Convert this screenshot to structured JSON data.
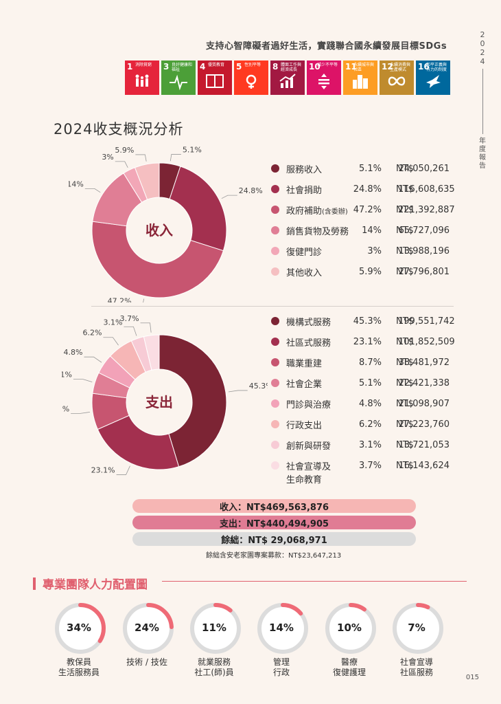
{
  "header": {
    "title": "支持心智障礙者過好生活，實踐聯合國永續發展目標SDGs"
  },
  "side": {
    "year": "2024",
    "label": "年度報告"
  },
  "sdgs": [
    {
      "num": "1",
      "label": "消除貧窮",
      "color": "#e5243b",
      "icon": "people-icon"
    },
    {
      "num": "3",
      "label": "良好健康和福祉",
      "color": "#4c9f38",
      "icon": "heartbeat-icon"
    },
    {
      "num": "4",
      "label": "優質教育",
      "color": "#c5192d",
      "icon": "book-icon"
    },
    {
      "num": "5",
      "label": "性別平等",
      "color": "#ff3a21",
      "icon": "gender-icon"
    },
    {
      "num": "8",
      "label": "體面工作與經濟成長",
      "color": "#a21942",
      "icon": "growth-chart-icon"
    },
    {
      "num": "10",
      "label": "減少不平等",
      "color": "#dd1367",
      "icon": "equality-icon"
    },
    {
      "num": "11",
      "label": "永續城市與社區",
      "color": "#fd9d24",
      "icon": "city-icon"
    },
    {
      "num": "12",
      "label": "永續消費與生產模式",
      "color": "#bf8b2e",
      "icon": "infinity-icon"
    },
    {
      "num": "16",
      "label": "和平正義與有力的制度",
      "color": "#00689d",
      "icon": "dove-icon"
    }
  ],
  "section_title": "2024收支概況分析",
  "chart_data": [
    {
      "type": "pie",
      "title": "收入",
      "categories": [
        "服務收入",
        "社會捐助",
        "政府補助(含委辦)",
        "銷售貨物及勞務",
        "復健門診",
        "其他收入"
      ],
      "values": [
        5.1,
        24.8,
        47.2,
        14,
        3,
        5.9
      ],
      "pct_labels": [
        "5.1%",
        "24.8%",
        "47.2%",
        "14%",
        "3%",
        "5.9%"
      ],
      "amounts": [
        "24,050,261",
        "116,608,635",
        "221,392,887",
        "65,727,096",
        "13,988,196",
        "27,796,801"
      ],
      "colors": [
        "#7c2434",
        "#a3304f",
        "#c75570",
        "#e07e95",
        "#f2a7b7",
        "#f5bfc1"
      ]
    },
    {
      "type": "pie",
      "title": "支出",
      "categories": [
        "機構式服務",
        "社區式服務",
        "職業重建",
        "社會企業",
        "門診與治療",
        "行政支出",
        "創新與研發",
        "社會宣導及生命教育"
      ],
      "values": [
        45.3,
        23.1,
        8.7,
        5.1,
        4.8,
        6.2,
        3.1,
        3.7
      ],
      "pct_labels": [
        "45.3%",
        "23.1%",
        "8.7%",
        "5.1%",
        "4.8%",
        "6.2%",
        "3.1%",
        "3.7%"
      ],
      "amounts": [
        "199,551,742",
        "101,852,509",
        "38,481,972",
        "22,421,338",
        "21,098,907",
        "27,223,760",
        "13,721,053",
        "16,143,624"
      ],
      "colors": [
        "#7c2434",
        "#a3304f",
        "#c75570",
        "#e07e95",
        "#f2a2b8",
        "#f6b6b6",
        "#f7cbd5",
        "#fadde3"
      ]
    }
  ],
  "legend_names": {
    "income": [
      "服務收入",
      "社會捐助",
      "政府補助",
      "銷售貨物及勞務",
      "復健門診",
      "其他收入"
    ],
    "income_small": "(含委辦)",
    "expense": [
      "機構式服務",
      "社區式服務",
      "職業重建",
      "社會企業",
      "門診與治療",
      "行政支出",
      "創新與研發",
      "社會宣導及"
    ],
    "expense_line2": "生命教育"
  },
  "currency": "NT$",
  "totals": {
    "income": "收入：NT$469,563,876",
    "expense": "支出：NT$440,494,905",
    "surplus": "餘絀：NT$  29,068,971",
    "note": "餘絀含安老家園專案募款：NT$23,647,213"
  },
  "team": {
    "title": "專業團隊人力配置圖",
    "items": [
      {
        "pct": "34%",
        "value": 34,
        "caption1": "教保員",
        "caption2": "生活服務員"
      },
      {
        "pct": "24%",
        "value": 24,
        "caption1": "技術 / 技佐",
        "caption2": ""
      },
      {
        "pct": "11%",
        "value": 11,
        "caption1": "就業服務",
        "caption2": "社工(師)員"
      },
      {
        "pct": "14%",
        "value": 14,
        "caption1": "管理",
        "caption2": "行政"
      },
      {
        "pct": "10%",
        "value": 10,
        "caption1": "醫療",
        "caption2": "復健護理"
      },
      {
        "pct": "7%",
        "value": 7,
        "caption1": "社會宣導",
        "caption2": "社區服務"
      }
    ]
  },
  "page_number": "015"
}
